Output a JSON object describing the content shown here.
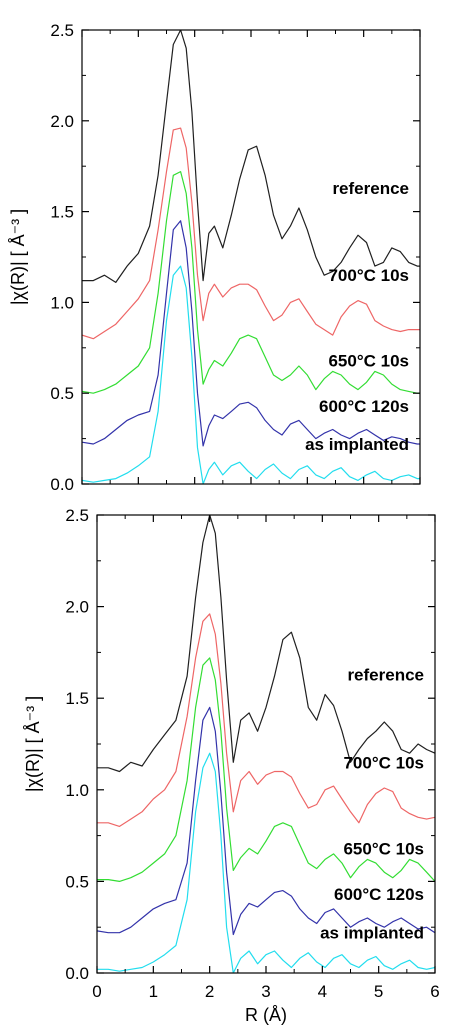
{
  "chart_data": [
    {
      "type": "line",
      "panel": "top",
      "ylabel": "|χ(R)| [ Å⁻³ ]",
      "xlabel": "",
      "xlim": [
        0,
        6
      ],
      "ylim": [
        0,
        2.5
      ],
      "y_ticks": [
        "0.0",
        "0.5",
        "1.0",
        "1.5",
        "2.0",
        "2.5"
      ],
      "x_ticks": [],
      "grid": false,
      "legend": "inline labels at right",
      "series": [
        {
          "label": "reference",
          "color": "#202020",
          "label_y": 1.63,
          "x": [
            0,
            0.2,
            0.4,
            0.6,
            0.8,
            1.0,
            1.2,
            1.35,
            1.5,
            1.62,
            1.75,
            1.85,
            1.95,
            2.05,
            2.15,
            2.25,
            2.35,
            2.5,
            2.65,
            2.8,
            2.95,
            3.1,
            3.25,
            3.4,
            3.55,
            3.7,
            3.85,
            4.0,
            4.15,
            4.3,
            4.45,
            4.6,
            4.75,
            4.9,
            5.05,
            5.2,
            5.35,
            5.5,
            5.65,
            5.8,
            5.95,
            6.0
          ],
          "y": [
            1.12,
            1.12,
            1.15,
            1.11,
            1.2,
            1.27,
            1.42,
            1.7,
            2.1,
            2.42,
            2.5,
            2.4,
            2.05,
            1.55,
            1.12,
            1.38,
            1.42,
            1.3,
            1.48,
            1.68,
            1.84,
            1.86,
            1.7,
            1.48,
            1.35,
            1.42,
            1.52,
            1.4,
            1.25,
            1.15,
            1.17,
            1.22,
            1.3,
            1.37,
            1.33,
            1.2,
            1.22,
            1.3,
            1.28,
            1.22,
            1.2,
            1.2
          ]
        },
        {
          "label": "700°C 10s",
          "color": "#ee6666",
          "label_y": 1.15,
          "x": [
            0,
            0.2,
            0.4,
            0.6,
            0.8,
            1.0,
            1.2,
            1.35,
            1.5,
            1.62,
            1.75,
            1.85,
            1.95,
            2.05,
            2.15,
            2.25,
            2.35,
            2.5,
            2.65,
            2.8,
            2.95,
            3.1,
            3.25,
            3.4,
            3.55,
            3.7,
            3.85,
            4.0,
            4.15,
            4.3,
            4.45,
            4.6,
            4.75,
            4.9,
            5.05,
            5.2,
            5.35,
            5.5,
            5.65,
            5.8,
            5.95,
            6.0
          ],
          "y": [
            0.82,
            0.8,
            0.84,
            0.88,
            0.95,
            1.02,
            1.12,
            1.4,
            1.72,
            1.95,
            1.96,
            1.85,
            1.55,
            1.15,
            0.9,
            1.05,
            1.1,
            1.03,
            1.08,
            1.1,
            1.1,
            1.07,
            0.98,
            0.9,
            0.93,
            1.0,
            1.02,
            0.95,
            0.88,
            0.85,
            0.82,
            0.92,
            0.98,
            1.01,
            0.99,
            0.9,
            0.87,
            0.85,
            0.84,
            0.85,
            0.85,
            0.85
          ]
        },
        {
          "label": "650°C 10s",
          "color": "#33dd33",
          "label_y": 0.68,
          "x": [
            0,
            0.2,
            0.4,
            0.6,
            0.8,
            1.0,
            1.2,
            1.35,
            1.5,
            1.62,
            1.75,
            1.85,
            1.95,
            2.05,
            2.15,
            2.25,
            2.35,
            2.5,
            2.65,
            2.8,
            2.95,
            3.1,
            3.25,
            3.4,
            3.55,
            3.7,
            3.85,
            4.0,
            4.15,
            4.3,
            4.45,
            4.6,
            4.75,
            4.9,
            5.05,
            5.2,
            5.35,
            5.5,
            5.65,
            5.8,
            5.95,
            6.0
          ],
          "y": [
            0.51,
            0.5,
            0.52,
            0.55,
            0.6,
            0.65,
            0.75,
            1.05,
            1.45,
            1.7,
            1.72,
            1.6,
            1.3,
            0.85,
            0.55,
            0.63,
            0.68,
            0.65,
            0.72,
            0.8,
            0.82,
            0.8,
            0.7,
            0.6,
            0.57,
            0.6,
            0.65,
            0.6,
            0.52,
            0.58,
            0.62,
            0.6,
            0.55,
            0.52,
            0.56,
            0.62,
            0.6,
            0.55,
            0.52,
            0.51,
            0.5,
            0.5
          ]
        },
        {
          "label": "600°C 120s",
          "color": "#3333aa",
          "label_y": 0.43,
          "x": [
            0,
            0.2,
            0.4,
            0.6,
            0.8,
            1.0,
            1.2,
            1.35,
            1.5,
            1.62,
            1.75,
            1.85,
            1.95,
            2.05,
            2.15,
            2.25,
            2.35,
            2.5,
            2.65,
            2.8,
            2.95,
            3.1,
            3.25,
            3.4,
            3.55,
            3.7,
            3.85,
            4.0,
            4.15,
            4.3,
            4.45,
            4.6,
            4.75,
            4.9,
            5.05,
            5.2,
            5.35,
            5.5,
            5.65,
            5.8,
            5.95,
            6.0
          ],
          "y": [
            0.23,
            0.22,
            0.25,
            0.3,
            0.35,
            0.38,
            0.4,
            0.6,
            1.05,
            1.4,
            1.45,
            1.3,
            0.95,
            0.5,
            0.21,
            0.32,
            0.38,
            0.36,
            0.4,
            0.44,
            0.45,
            0.42,
            0.35,
            0.3,
            0.27,
            0.33,
            0.35,
            0.3,
            0.25,
            0.28,
            0.3,
            0.27,
            0.25,
            0.28,
            0.3,
            0.27,
            0.24,
            0.26,
            0.25,
            0.23,
            0.22,
            0.22
          ]
        },
        {
          "label": "as implanted",
          "color": "#22ddee",
          "label_y": 0.22,
          "x": [
            0,
            0.2,
            0.4,
            0.6,
            0.8,
            1.0,
            1.2,
            1.35,
            1.5,
            1.62,
            1.75,
            1.85,
            1.95,
            2.05,
            2.15,
            2.25,
            2.35,
            2.5,
            2.65,
            2.8,
            2.95,
            3.1,
            3.25,
            3.4,
            3.55,
            3.7,
            3.85,
            4.0,
            4.15,
            4.3,
            4.45,
            4.6,
            4.75,
            4.9,
            5.05,
            5.2,
            5.35,
            5.5,
            5.65,
            5.8,
            5.95,
            6.0
          ],
          "y": [
            0.02,
            0.01,
            0.02,
            0.03,
            0.06,
            0.1,
            0.15,
            0.4,
            0.9,
            1.15,
            1.2,
            1.08,
            0.7,
            0.2,
            0.0,
            0.08,
            0.12,
            0.05,
            0.1,
            0.12,
            0.07,
            0.03,
            0.08,
            0.11,
            0.06,
            0.03,
            0.08,
            0.1,
            0.05,
            0.03,
            0.07,
            0.09,
            0.04,
            0.02,
            0.05,
            0.07,
            0.03,
            0.02,
            0.04,
            0.05,
            0.03,
            0.03
          ]
        }
      ]
    },
    {
      "type": "line",
      "panel": "bottom",
      "ylabel": "|χ(R)| [ Å⁻³ ]",
      "xlabel": "R (Å)",
      "xlim": [
        0,
        6
      ],
      "ylim": [
        0,
        2.5
      ],
      "y_ticks": [
        "0.0",
        "0.5",
        "1.0",
        "1.5",
        "2.0",
        "2.5"
      ],
      "x_ticks": [
        "0",
        "1",
        "2",
        "3",
        "4",
        "5",
        "6"
      ],
      "grid": false,
      "legend": "inline labels at right",
      "series": [
        {
          "label": "reference",
          "color": "#202020",
          "label_y": 1.63,
          "x": [
            0,
            0.2,
            0.4,
            0.6,
            0.8,
            1.0,
            1.2,
            1.4,
            1.6,
            1.75,
            1.88,
            2.0,
            2.1,
            2.2,
            2.3,
            2.42,
            2.55,
            2.7,
            2.85,
            3.0,
            3.15,
            3.3,
            3.45,
            3.6,
            3.75,
            3.9,
            4.05,
            4.2,
            4.35,
            4.5,
            4.65,
            4.8,
            4.95,
            5.1,
            5.25,
            5.4,
            5.55,
            5.7,
            5.85,
            6.0
          ],
          "y": [
            1.12,
            1.12,
            1.1,
            1.15,
            1.13,
            1.22,
            1.3,
            1.38,
            1.62,
            2.05,
            2.35,
            2.5,
            2.4,
            2.05,
            1.6,
            1.15,
            1.38,
            1.42,
            1.32,
            1.45,
            1.62,
            1.82,
            1.86,
            1.72,
            1.45,
            1.38,
            1.52,
            1.46,
            1.32,
            1.15,
            1.22,
            1.28,
            1.32,
            1.37,
            1.32,
            1.22,
            1.2,
            1.25,
            1.22,
            1.2
          ]
        },
        {
          "label": "700°C 10s",
          "color": "#ee6666",
          "label_y": 1.15,
          "x": [
            0,
            0.2,
            0.4,
            0.6,
            0.8,
            1.0,
            1.2,
            1.4,
            1.6,
            1.75,
            1.88,
            2.0,
            2.1,
            2.2,
            2.3,
            2.42,
            2.55,
            2.7,
            2.85,
            3.0,
            3.15,
            3.3,
            3.45,
            3.6,
            3.75,
            3.9,
            4.05,
            4.2,
            4.35,
            4.5,
            4.65,
            4.8,
            4.95,
            5.1,
            5.25,
            5.4,
            5.55,
            5.7,
            5.85,
            6.0
          ],
          "y": [
            0.82,
            0.82,
            0.8,
            0.84,
            0.88,
            0.95,
            1.0,
            1.1,
            1.4,
            1.72,
            1.92,
            1.96,
            1.85,
            1.58,
            1.2,
            0.88,
            1.05,
            1.1,
            1.03,
            1.08,
            1.1,
            1.1,
            1.07,
            0.98,
            0.9,
            0.92,
            1.0,
            1.02,
            0.95,
            0.88,
            0.82,
            0.92,
            0.98,
            1.01,
            0.99,
            0.9,
            0.87,
            0.85,
            0.84,
            0.85
          ]
        },
        {
          "label": "650°C 10s",
          "color": "#33dd33",
          "label_y": 0.68,
          "x": [
            0,
            0.2,
            0.4,
            0.6,
            0.8,
            1.0,
            1.2,
            1.4,
            1.6,
            1.75,
            1.88,
            2.0,
            2.1,
            2.2,
            2.3,
            2.42,
            2.55,
            2.7,
            2.85,
            3.0,
            3.15,
            3.3,
            3.45,
            3.6,
            3.75,
            3.9,
            4.05,
            4.2,
            4.35,
            4.5,
            4.65,
            4.8,
            4.95,
            5.1,
            5.25,
            5.4,
            5.55,
            5.7,
            5.85,
            6.0
          ],
          "y": [
            0.51,
            0.51,
            0.5,
            0.52,
            0.55,
            0.6,
            0.65,
            0.75,
            1.05,
            1.45,
            1.68,
            1.72,
            1.6,
            1.32,
            0.9,
            0.56,
            0.63,
            0.68,
            0.65,
            0.72,
            0.8,
            0.82,
            0.8,
            0.7,
            0.6,
            0.57,
            0.62,
            0.65,
            0.6,
            0.52,
            0.58,
            0.62,
            0.6,
            0.55,
            0.52,
            0.56,
            0.62,
            0.6,
            0.55,
            0.5
          ]
        },
        {
          "label": "600°C 120s",
          "color": "#3333aa",
          "label_y": 0.43,
          "x": [
            0,
            0.2,
            0.4,
            0.6,
            0.8,
            1.0,
            1.2,
            1.4,
            1.6,
            1.75,
            1.88,
            2.0,
            2.1,
            2.2,
            2.3,
            2.42,
            2.55,
            2.7,
            2.85,
            3.0,
            3.15,
            3.3,
            3.45,
            3.6,
            3.75,
            3.9,
            4.05,
            4.2,
            4.35,
            4.5,
            4.65,
            4.8,
            4.95,
            5.1,
            5.25,
            5.4,
            5.55,
            5.7,
            5.85,
            6.0
          ],
          "y": [
            0.23,
            0.22,
            0.22,
            0.25,
            0.3,
            0.35,
            0.38,
            0.4,
            0.6,
            1.05,
            1.38,
            1.45,
            1.32,
            0.98,
            0.55,
            0.21,
            0.32,
            0.38,
            0.36,
            0.4,
            0.44,
            0.45,
            0.42,
            0.35,
            0.3,
            0.27,
            0.33,
            0.35,
            0.3,
            0.25,
            0.28,
            0.3,
            0.27,
            0.25,
            0.28,
            0.3,
            0.27,
            0.24,
            0.25,
            0.22
          ]
        },
        {
          "label": "as implanted",
          "color": "#22ddee",
          "label_y": 0.22,
          "x": [
            0,
            0.2,
            0.4,
            0.6,
            0.8,
            1.0,
            1.2,
            1.4,
            1.6,
            1.75,
            1.88,
            2.0,
            2.1,
            2.2,
            2.3,
            2.42,
            2.55,
            2.7,
            2.85,
            3.0,
            3.15,
            3.3,
            3.45,
            3.6,
            3.75,
            3.9,
            4.05,
            4.2,
            4.35,
            4.5,
            4.65,
            4.8,
            4.95,
            5.1,
            5.25,
            5.4,
            5.55,
            5.7,
            5.85,
            6.0
          ],
          "y": [
            0.02,
            0.02,
            0.01,
            0.02,
            0.03,
            0.06,
            0.1,
            0.15,
            0.4,
            0.88,
            1.12,
            1.2,
            1.1,
            0.75,
            0.25,
            0.0,
            0.08,
            0.12,
            0.05,
            0.1,
            0.12,
            0.07,
            0.03,
            0.08,
            0.11,
            0.06,
            0.03,
            0.08,
            0.1,
            0.05,
            0.03,
            0.07,
            0.09,
            0.04,
            0.02,
            0.05,
            0.07,
            0.03,
            0.02,
            0.03
          ]
        }
      ]
    }
  ]
}
